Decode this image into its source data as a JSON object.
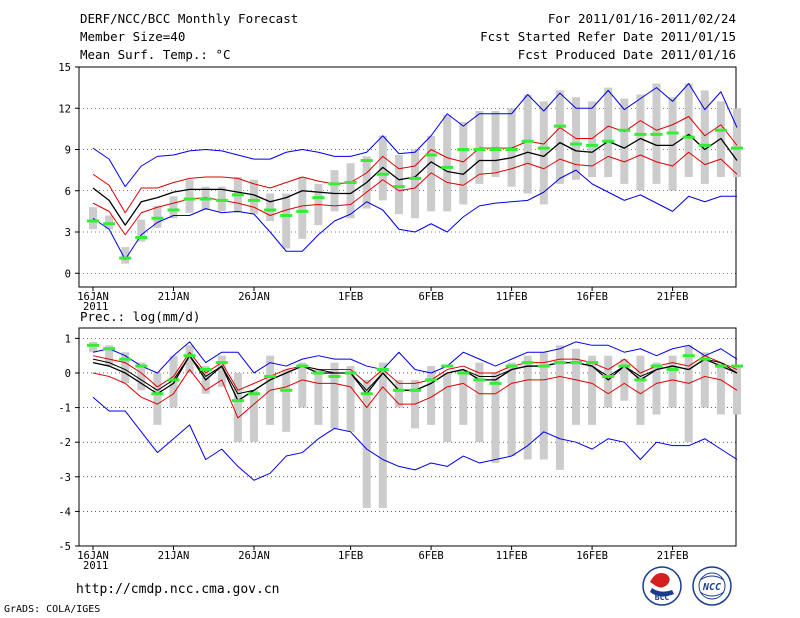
{
  "header": {
    "title": "DERF/NCC/BCC Monthly Forecast",
    "member": "Member Size=40",
    "variable": "Mean Surf. Temp.: °C",
    "period": "For 2011/01/16-2011/02/24",
    "refer": "Fcst Started Refer Date 2011/01/15",
    "produced": "Fcst Produced Date 2011/01/16"
  },
  "footer": {
    "url": "http://cmdp.ncc.cma.gov.cn",
    "credit": "GrADS: COLA/IGES",
    "logo_bcc": "BCC",
    "logo_ncc": "NCC"
  },
  "colors": {
    "max_min": "#0000ee",
    "ci": "#e00000",
    "mean": "#000000",
    "obs": "#33ee33",
    "spread": "#cccccc"
  },
  "chart_data": [
    {
      "type": "line",
      "title": "Mean Surf. Temp.: °C",
      "x_tick_labels": [
        "16JAN",
        "21JAN",
        "26JAN",
        "1FEB",
        "6FEB",
        "11FEB",
        "16FEB",
        "21FEB"
      ],
      "x_tick_days": [
        0,
        5,
        10,
        16,
        21,
        26,
        31,
        36
      ],
      "year_label": "2011",
      "ylim": [
        -1,
        15
      ],
      "yticks": [
        0,
        3,
        6,
        9,
        12,
        15
      ],
      "n_days": 40,
      "series": [
        {
          "name": "max",
          "role": "max",
          "values": [
            9.1,
            8.3,
            6.3,
            7.8,
            8.5,
            8.6,
            8.9,
            9.0,
            8.9,
            8.6,
            8.3,
            8.3,
            8.8,
            9.0,
            8.8,
            8.5,
            8.5,
            8.8,
            10.0,
            8.7,
            8.8,
            10.0,
            11.6,
            10.7,
            11.6,
            11.6,
            11.6,
            13.0,
            11.8,
            13.1,
            12.0,
            12.0,
            13.3,
            11.9,
            12.7,
            13.5,
            12.5,
            13.8,
            11.9,
            13.2,
            10.6
          ]
        },
        {
          "name": "upper",
          "role": "ci",
          "values": [
            7.2,
            6.4,
            4.4,
            6.2,
            6.2,
            6.6,
            6.9,
            7.0,
            7.0,
            6.9,
            6.5,
            6.2,
            6.6,
            7.0,
            6.7,
            6.5,
            6.6,
            7.3,
            8.5,
            7.6,
            7.8,
            9.0,
            8.4,
            8.1,
            9.1,
            9.1,
            9.1,
            9.6,
            9.4,
            10.6,
            9.8,
            9.8,
            10.7,
            10.3,
            11.1,
            10.4,
            10.8,
            11.4,
            10.0,
            10.8,
            9.3
          ]
        },
        {
          "name": "mean",
          "role": "mean",
          "values": [
            6.2,
            5.3,
            3.5,
            5.2,
            5.5,
            5.9,
            6.1,
            6.1,
            6.1,
            5.9,
            5.7,
            5.2,
            5.5,
            6.0,
            5.9,
            5.8,
            5.8,
            6.6,
            7.7,
            6.8,
            7.0,
            8.1,
            7.4,
            7.2,
            8.2,
            8.2,
            8.4,
            8.8,
            8.5,
            9.5,
            8.9,
            8.8,
            9.6,
            9.1,
            9.8,
            9.3,
            9.3,
            10.1,
            9.0,
            9.8,
            8.2
          ]
        },
        {
          "name": "lower",
          "role": "ci",
          "values": [
            5.1,
            4.5,
            2.8,
            4.4,
            4.8,
            5.1,
            5.4,
            5.5,
            5.3,
            5.1,
            4.8,
            4.2,
            4.6,
            4.9,
            5.0,
            4.9,
            5.0,
            5.9,
            6.8,
            6.0,
            6.2,
            7.3,
            6.6,
            6.4,
            7.2,
            7.3,
            7.6,
            8.0,
            7.6,
            8.3,
            7.9,
            7.8,
            8.5,
            8.1,
            8.6,
            8.1,
            7.8,
            8.8,
            7.9,
            8.3,
            7.2
          ]
        },
        {
          "name": "min",
          "role": "min",
          "values": [
            4.0,
            3.2,
            1.0,
            2.8,
            3.7,
            4.2,
            4.2,
            4.7,
            4.4,
            4.5,
            4.3,
            3.0,
            1.6,
            1.6,
            2.8,
            3.8,
            4.3,
            5.2,
            4.6,
            3.2,
            3.0,
            3.6,
            3.0,
            4.1,
            4.9,
            5.1,
            5.2,
            5.3,
            5.9,
            6.9,
            7.5,
            6.5,
            5.9,
            5.3,
            5.7,
            5.1,
            4.5,
            5.6,
            5.2,
            5.6,
            5.6
          ]
        }
      ],
      "spread": [
        [
          3.2,
          4.8
        ],
        [
          3.2,
          4.2
        ],
        [
          0.7,
          1.9
        ],
        [
          2.3,
          3.9
        ],
        [
          3.3,
          4.9
        ],
        [
          4.0,
          5.6
        ],
        [
          4.4,
          6.8
        ],
        [
          4.6,
          6.3
        ],
        [
          4.5,
          6.3
        ],
        [
          4.4,
          7.0
        ],
        [
          4.3,
          6.8
        ],
        [
          3.8,
          5.8
        ],
        [
          1.8,
          5.8
        ],
        [
          2.5,
          7.0
        ],
        [
          3.5,
          6.5
        ],
        [
          4.5,
          7.5
        ],
        [
          4.0,
          8.0
        ],
        [
          4.7,
          8.5
        ],
        [
          5.3,
          10.0
        ],
        [
          4.3,
          8.6
        ],
        [
          4.0,
          9.0
        ],
        [
          4.5,
          10.0
        ],
        [
          4.5,
          11.5
        ],
        [
          5.0,
          11.0
        ],
        [
          6.5,
          11.8
        ],
        [
          7.0,
          11.8
        ],
        [
          6.3,
          12.0
        ],
        [
          5.8,
          13.0
        ],
        [
          5.0,
          12.5
        ],
        [
          6.5,
          13.3
        ],
        [
          6.8,
          12.8
        ],
        [
          7.0,
          12.5
        ],
        [
          7.0,
          13.5
        ],
        [
          6.5,
          12.7
        ],
        [
          6.0,
          13.0
        ],
        [
          6.5,
          13.8
        ],
        [
          6.0,
          12.8
        ],
        [
          7.0,
          13.8
        ],
        [
          6.5,
          13.3
        ],
        [
          7.0,
          12.5
        ],
        [
          7.0,
          12.0
        ]
      ],
      "observed": [
        3.8,
        3.6,
        1.1,
        2.6,
        4.0,
        4.6,
        5.4,
        5.4,
        5.3,
        5.7,
        5.3,
        4.6,
        4.2,
        4.5,
        5.5,
        6.5,
        6.6,
        8.2,
        7.2,
        6.3,
        6.9,
        8.6,
        7.7,
        9.0,
        9.0,
        9.0,
        9.0,
        9.6,
        9.1,
        10.7,
        9.4,
        9.3,
        9.6,
        10.4,
        10.1,
        10.1,
        10.2,
        9.9,
        9.3,
        10.4,
        9.1
      ]
    },
    {
      "type": "line",
      "title": "Prec.: log(mm/d)",
      "x_tick_labels": [
        "16JAN",
        "21JAN",
        "26JAN",
        "1FEB",
        "6FEB",
        "11FEB",
        "16FEB",
        "21FEB"
      ],
      "x_tick_days": [
        0,
        5,
        10,
        16,
        21,
        26,
        31,
        36
      ],
      "year_label": "2011",
      "ylim": [
        -5,
        1.3
      ],
      "yticks": [
        -5,
        -4,
        -3,
        -2,
        -1,
        0,
        1
      ],
      "n_days": 40,
      "series": [
        {
          "name": "max",
          "role": "max",
          "values": [
            0.6,
            0.7,
            0.5,
            0.2,
            0.0,
            0.5,
            0.9,
            0.3,
            0.6,
            0.6,
            0.0,
            0.3,
            0.2,
            0.4,
            0.5,
            0.4,
            0.4,
            0.2,
            0.1,
            0.6,
            0.1,
            0.0,
            0.2,
            0.6,
            0.4,
            0.2,
            0.4,
            0.6,
            0.6,
            0.7,
            0.9,
            0.8,
            0.8,
            0.6,
            0.7,
            0.5,
            0.7,
            0.8,
            0.5,
            0.7,
            0.4
          ]
        },
        {
          "name": "upper",
          "role": "ci",
          "values": [
            0.5,
            0.4,
            0.3,
            0.0,
            -0.4,
            -0.1,
            0.6,
            0.0,
            0.3,
            -0.5,
            -0.3,
            -0.1,
            0.1,
            0.2,
            0.1,
            0.1,
            0.1,
            -0.3,
            0.1,
            -0.3,
            -0.3,
            -0.2,
            0.1,
            0.2,
            0.0,
            0.0,
            0.2,
            0.3,
            0.3,
            0.4,
            0.4,
            0.3,
            0.1,
            0.4,
            0.0,
            0.2,
            0.3,
            0.2,
            0.5,
            0.3,
            0.1
          ]
        },
        {
          "name": "mean",
          "role": "mean",
          "values": [
            0.3,
            0.2,
            0.0,
            -0.3,
            -0.6,
            -0.3,
            0.5,
            -0.2,
            0.2,
            -0.8,
            -0.5,
            -0.2,
            0.0,
            0.2,
            0.0,
            0.0,
            0.0,
            -0.6,
            0.0,
            -0.5,
            -0.5,
            -0.3,
            0.0,
            0.1,
            -0.2,
            -0.2,
            0.1,
            0.2,
            0.2,
            0.3,
            0.3,
            0.2,
            -0.2,
            0.2,
            -0.2,
            0.1,
            0.2,
            0.1,
            0.4,
            0.2,
            0.0
          ]
        },
        {
          "name": "lower",
          "role": "ci",
          "values": [
            0.0,
            -0.1,
            -0.3,
            -0.7,
            -0.9,
            -0.6,
            0.1,
            -0.5,
            -0.2,
            -1.3,
            -0.9,
            -0.5,
            -0.4,
            -0.2,
            -0.3,
            -0.3,
            -0.4,
            -1.0,
            -0.4,
            -0.9,
            -0.9,
            -0.7,
            -0.4,
            -0.3,
            -0.6,
            -0.6,
            -0.3,
            -0.2,
            -0.2,
            -0.1,
            -0.2,
            -0.3,
            -0.6,
            -0.3,
            -0.6,
            -0.3,
            -0.2,
            -0.3,
            -0.1,
            -0.2,
            -0.5
          ]
        },
        {
          "name": "min",
          "role": "min",
          "values": [
            -0.7,
            -1.1,
            -1.1,
            -1.7,
            -2.3,
            -1.9,
            -1.5,
            -2.5,
            -2.2,
            -2.7,
            -3.1,
            -2.9,
            -2.4,
            -2.3,
            -1.9,
            -1.6,
            -1.7,
            -2.2,
            -2.5,
            -2.7,
            -2.8,
            -2.6,
            -2.7,
            -2.4,
            -2.6,
            -2.5,
            -2.4,
            -2.1,
            -1.7,
            -1.9,
            -2.0,
            -2.2,
            -1.9,
            -2.0,
            -2.5,
            -2.0,
            -2.1,
            -2.1,
            -1.9,
            -2.2,
            -2.5
          ]
        },
        {
          "name": "cycle",
          "role": "mean-extra",
          "values": [
            0.4,
            0.3,
            0.1,
            -0.2,
            -0.5,
            -0.2,
            0.5,
            -0.1,
            0.2,
            -0.6,
            -0.5,
            -0.2,
            0.0,
            0.2,
            0.1,
            0.0,
            0.0,
            -0.5,
            0.0,
            -0.5,
            -0.5,
            -0.3,
            0.0,
            0.1,
            -0.1,
            -0.1,
            0.1,
            0.2,
            0.2,
            0.3,
            0.3,
            0.2,
            -0.1,
            0.2,
            -0.1,
            0.1,
            0.2,
            0.1,
            0.4,
            0.3,
            0.0
          ]
        }
      ],
      "spread": [
        [
          0.6,
          0.9
        ],
        [
          0.2,
          0.8
        ],
        [
          -0.3,
          0.6
        ],
        [
          -0.5,
          0.3
        ],
        [
          -1.5,
          0.0
        ],
        [
          -1.0,
          0.5
        ],
        [
          0.0,
          0.8
        ],
        [
          -0.6,
          0.2
        ],
        [
          -0.4,
          0.5
        ],
        [
          -2.0,
          0.0
        ],
        [
          -2.0,
          -0.5
        ],
        [
          -1.5,
          0.5
        ],
        [
          -1.7,
          0.1
        ],
        [
          -1.0,
          0.3
        ],
        [
          -1.5,
          0.1
        ],
        [
          -1.6,
          0.3
        ],
        [
          -1.7,
          0.2
        ],
        [
          -3.9,
          -0.2
        ],
        [
          -3.9,
          0.3
        ],
        [
          -1.0,
          -0.2
        ],
        [
          -1.6,
          -0.2
        ],
        [
          -1.5,
          0.2
        ],
        [
          -2.0,
          0.0
        ],
        [
          -1.5,
          0.1
        ],
        [
          -2.0,
          0.3
        ],
        [
          -2.6,
          0.0
        ],
        [
          -2.4,
          0.3
        ],
        [
          -2.5,
          0.5
        ],
        [
          -2.5,
          0.6
        ],
        [
          -2.8,
          0.8
        ],
        [
          -1.5,
          0.7
        ],
        [
          -1.5,
          0.5
        ],
        [
          -1.0,
          0.5
        ],
        [
          -0.8,
          0.4
        ],
        [
          -1.5,
          0.5
        ],
        [
          -1.2,
          0.3
        ],
        [
          -1.0,
          0.5
        ],
        [
          -2.0,
          0.8
        ],
        [
          -1.0,
          0.6
        ],
        [
          -1.2,
          0.3
        ],
        [
          -1.2,
          0.2
        ]
      ],
      "observed": [
        0.8,
        0.7,
        0.4,
        0.2,
        -0.6,
        -0.2,
        0.5,
        0.1,
        0.3,
        -0.8,
        -0.6,
        -0.1,
        -0.5,
        0.2,
        0.0,
        -0.1,
        0.0,
        -0.6,
        0.1,
        -0.5,
        -0.5,
        -0.2,
        0.2,
        0.0,
        -0.2,
        -0.3,
        0.2,
        0.3,
        0.2,
        0.3,
        0.3,
        0.3,
        -0.1,
        0.2,
        -0.2,
        0.2,
        0.1,
        0.5,
        0.4,
        0.2,
        0.2
      ]
    }
  ]
}
